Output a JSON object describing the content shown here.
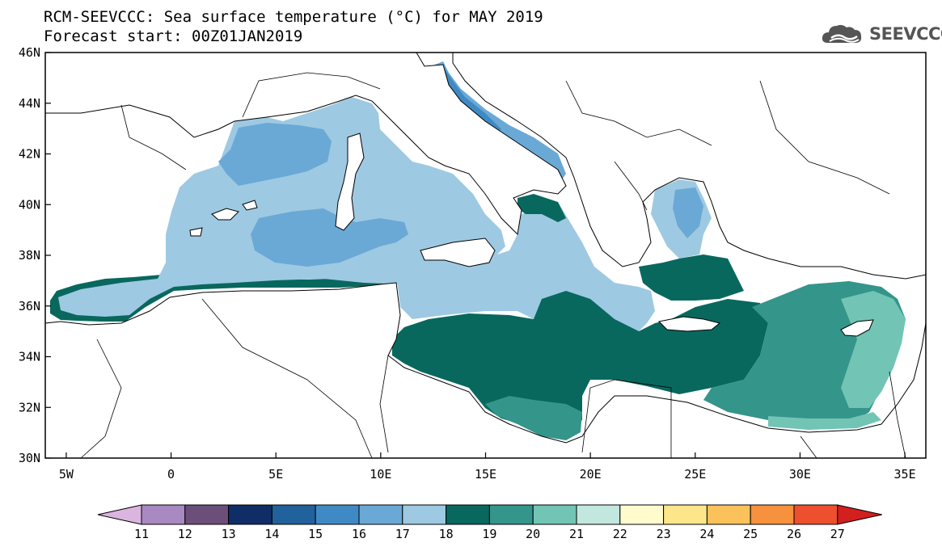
{
  "header": {
    "title": "RCM-SEEVCCC: Sea surface temperature (°C) for MAY 2019",
    "subtitle": "Forecast start: 00Z01JAN2019"
  },
  "logo": {
    "text": "SEEVCCC",
    "icon": "cloud-icon"
  },
  "map": {
    "projection": "lat-lon",
    "lon_range": [
      -6,
      36
    ],
    "lat_range": [
      30,
      46
    ],
    "lon_ticks": [
      "5W",
      "0",
      "5E",
      "10E",
      "15E",
      "20E",
      "25E",
      "30E",
      "35E"
    ],
    "lat_ticks": [
      "30N",
      "32N",
      "34N",
      "36N",
      "38N",
      "40N",
      "42N",
      "44N",
      "46N"
    ]
  },
  "colorbar": {
    "labels": [
      "11",
      "12",
      "13",
      "14",
      "15",
      "16",
      "17",
      "18",
      "19",
      "20",
      "21",
      "22",
      "23",
      "24",
      "25",
      "26",
      "27"
    ],
    "colors": [
      "#dcb4e0",
      "#a889c1",
      "#6b4f7a",
      "#0f2d66",
      "#21619c",
      "#3f8ac4",
      "#6aa9d6",
      "#9ec9e2",
      "#08685e",
      "#34958a",
      "#72c4b5",
      "#c2e7df",
      "#fffbcc",
      "#fde58a",
      "#fbc15a",
      "#f6913d",
      "#ee4f2e",
      "#d21f1f"
    ]
  }
}
